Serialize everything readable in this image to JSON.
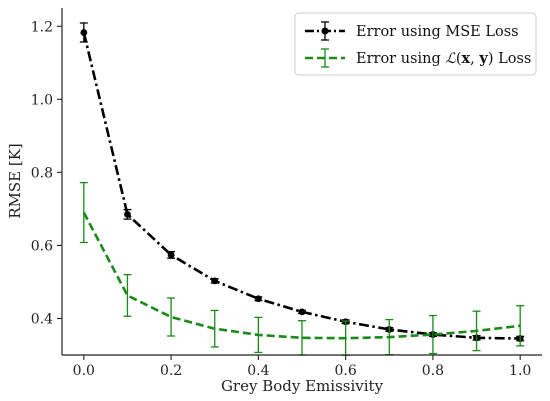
{
  "chart_data": {
    "type": "line",
    "xlabel": "Grey Body Emissivity",
    "ylabel": "RMSE [K]",
    "xlim": [
      -0.05,
      1.05
    ],
    "ylim": [
      0.3,
      1.25
    ],
    "xticks": [
      "0.0",
      "0.2",
      "0.4",
      "0.6",
      "0.8",
      "1.0"
    ],
    "yticks": [
      "0.4",
      "0.6",
      "0.8",
      "1.0",
      "1.2"
    ],
    "legend_position": "top-right",
    "x": [
      0.0,
      0.1,
      0.2,
      0.3,
      0.4,
      0.5,
      0.6,
      0.7,
      0.8,
      0.9,
      1.0
    ],
    "series": [
      {
        "name": "Error using MSE Loss",
        "color": "#000000",
        "line_style": "dash-dot",
        "marker": "circle",
        "values": [
          1.183,
          0.685,
          0.574,
          0.503,
          0.454,
          0.418,
          0.391,
          0.37,
          0.356,
          0.347,
          0.345
        ],
        "errors": [
          0.026,
          0.013,
          0.009,
          0.006,
          0.005,
          0.004,
          0.005,
          0.005,
          0.005,
          0.006,
          0.006
        ]
      },
      {
        "name_parts": [
          "Error using ",
          "ℒ",
          "(",
          "x",
          ", ",
          "y",
          ")",
          " Loss"
        ],
        "color": "#1a8a1a",
        "line_style": "dashed",
        "marker": "none",
        "values": [
          0.69,
          0.463,
          0.404,
          0.372,
          0.355,
          0.347,
          0.346,
          0.349,
          0.356,
          0.366,
          0.38
        ],
        "errors": [
          0.082,
          0.057,
          0.052,
          0.05,
          0.048,
          0.047,
          0.047,
          0.048,
          0.052,
          0.054,
          0.055
        ]
      }
    ]
  }
}
